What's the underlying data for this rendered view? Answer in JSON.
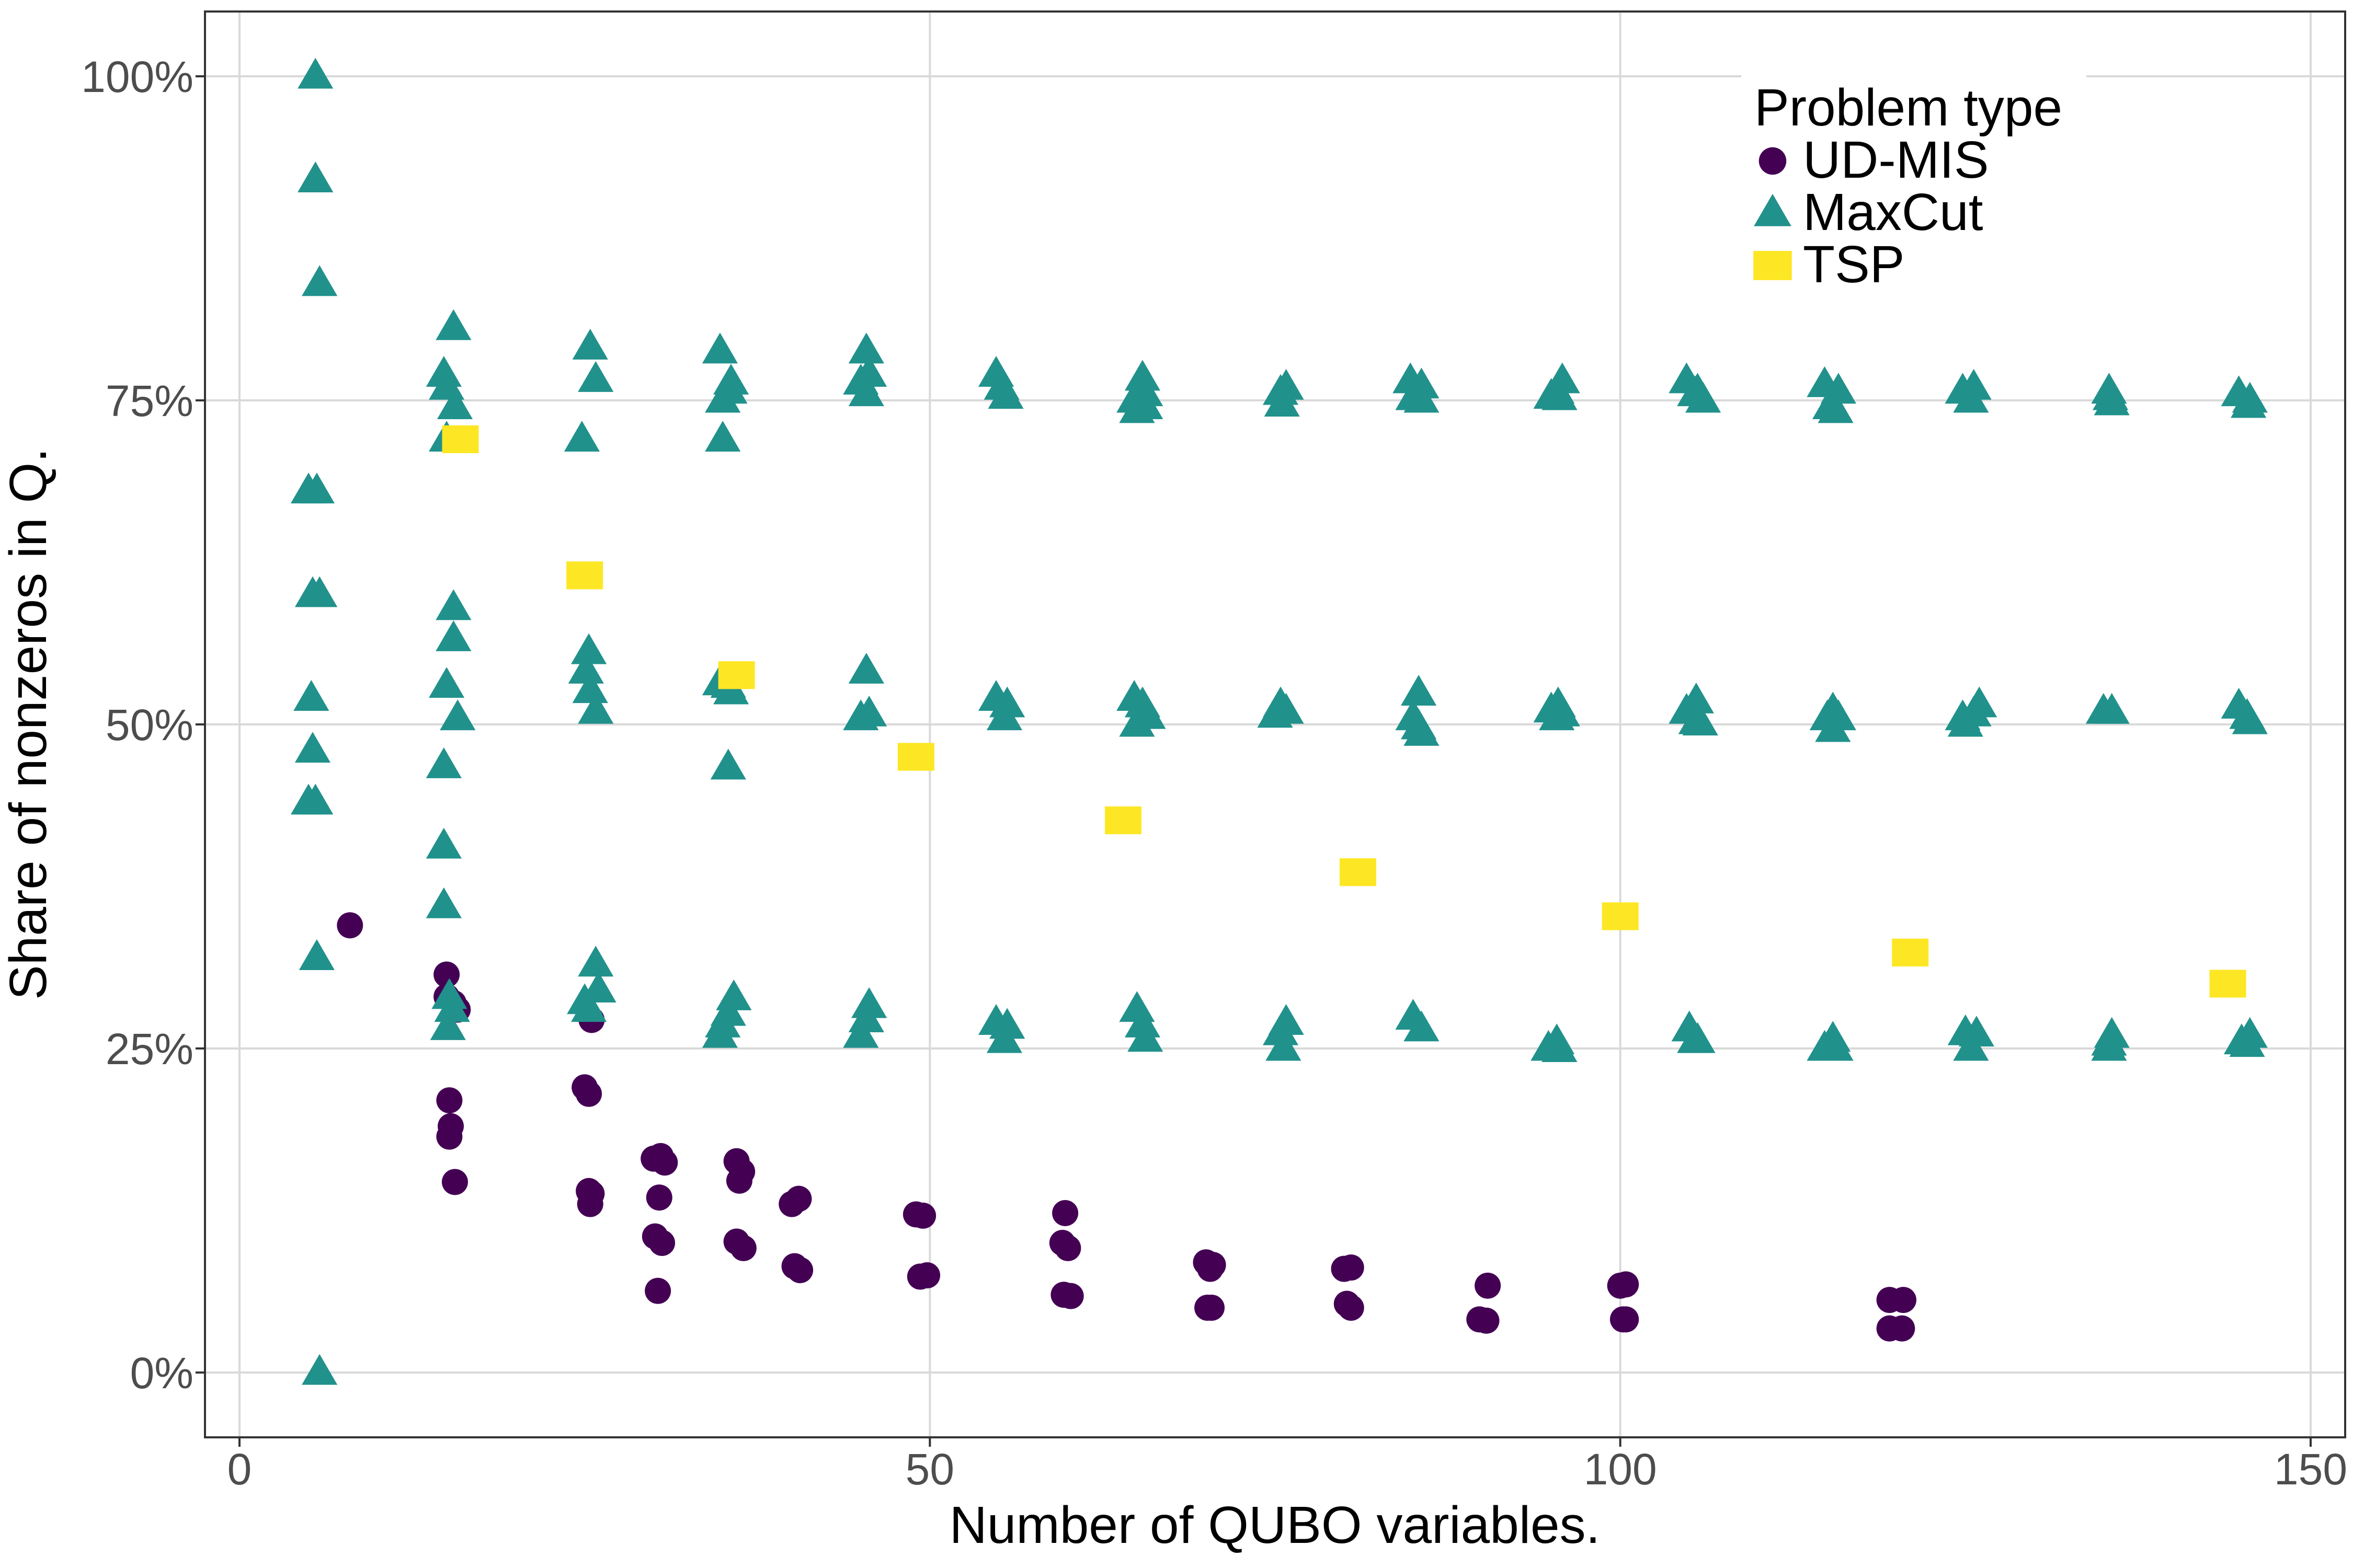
{
  "chart_data": {
    "type": "scatter",
    "xlabel": "Number of QUBO variables.",
    "ylabel": "Share of nonzeros in Q.",
    "xlim": [
      -2.5,
      152.5
    ],
    "ylim": [
      -0.05,
      1.05
    ],
    "x_ticks": [
      0,
      50,
      100,
      150
    ],
    "x_tick_labels": [
      "0",
      "50",
      "100",
      "150"
    ],
    "y_ticks": [
      0,
      0.25,
      0.5,
      0.75,
      1.0
    ],
    "y_tick_labels": [
      "0%",
      "25%",
      "50%",
      "75%",
      "100%"
    ],
    "grid": true,
    "legend": {
      "title": "Problem type",
      "placement": "top-right"
    },
    "series": [
      {
        "name": "UD-MIS",
        "marker": "circle",
        "color": "#440154",
        "points": [
          [
            8,
            0.345
          ],
          [
            15,
            0.307
          ],
          [
            15,
            0.29
          ],
          [
            15.5,
            0.285
          ],
          [
            15.8,
            0.28
          ],
          [
            15.2,
            0.21
          ],
          [
            15.3,
            0.19
          ],
          [
            15.2,
            0.182
          ],
          [
            15.6,
            0.147
          ],
          [
            25,
            0.22
          ],
          [
            25.3,
            0.215
          ],
          [
            25.5,
            0.272
          ],
          [
            25.3,
            0.14
          ],
          [
            25.5,
            0.138
          ],
          [
            25.4,
            0.13
          ],
          [
            30,
            0.165
          ],
          [
            30.5,
            0.167
          ],
          [
            30.8,
            0.162
          ],
          [
            30.4,
            0.135
          ],
          [
            30.1,
            0.105
          ],
          [
            30.6,
            0.1
          ],
          [
            30.3,
            0.063
          ],
          [
            36,
            0.163
          ],
          [
            36.4,
            0.155
          ],
          [
            36.2,
            0.148
          ],
          [
            36,
            0.101
          ],
          [
            36.5,
            0.096
          ],
          [
            40,
            0.13
          ],
          [
            40.5,
            0.134
          ],
          [
            40.2,
            0.082
          ],
          [
            40.6,
            0.079
          ],
          [
            49,
            0.122
          ],
          [
            49.5,
            0.121
          ],
          [
            49.3,
            0.074
          ],
          [
            49.8,
            0.075
          ],
          [
            59.8,
            0.123
          ],
          [
            59.6,
            0.1
          ],
          [
            60,
            0.096
          ],
          [
            59.7,
            0.06
          ],
          [
            60.2,
            0.059
          ],
          [
            70,
            0.085
          ],
          [
            70.5,
            0.083
          ],
          [
            70.3,
            0.08
          ],
          [
            70.1,
            0.05
          ],
          [
            70.4,
            0.05
          ],
          [
            80,
            0.08
          ],
          [
            80.5,
            0.081
          ],
          [
            80.2,
            0.053
          ],
          [
            80.5,
            0.05
          ],
          [
            89.8,
            0.041
          ],
          [
            90.4,
            0.067
          ],
          [
            90.3,
            0.04
          ],
          [
            100,
            0.067
          ],
          [
            100.4,
            0.068
          ],
          [
            100.2,
            0.041
          ],
          [
            100.4,
            0.041
          ],
          [
            119.5,
            0.056
          ],
          [
            120.5,
            0.056
          ],
          [
            119.5,
            0.034
          ],
          [
            120.4,
            0.034
          ]
        ]
      },
      {
        "name": "MaxCut",
        "marker": "triangle",
        "color": "#21918c",
        "points": [
          [
            5.5,
            1.0
          ],
          [
            5.5,
            0.92
          ],
          [
            5.8,
            0.84
          ],
          [
            5,
            0.68
          ],
          [
            5.6,
            0.68
          ],
          [
            5.3,
            0.6
          ],
          [
            5.8,
            0.6
          ],
          [
            5.2,
            0.52
          ],
          [
            5.3,
            0.48
          ],
          [
            5,
            0.44
          ],
          [
            5.5,
            0.44
          ],
          [
            5.6,
            0.32
          ],
          [
            5.8,
            0.0
          ],
          [
            15.5,
            0.806
          ],
          [
            14.8,
            0.77
          ],
          [
            15,
            0.76
          ],
          [
            15.6,
            0.745
          ],
          [
            15,
            0.72
          ],
          [
            15.5,
            0.59
          ],
          [
            15.5,
            0.566
          ],
          [
            15,
            0.53
          ],
          [
            15.8,
            0.505
          ],
          [
            14.8,
            0.468
          ],
          [
            14.8,
            0.406
          ],
          [
            14.8,
            0.36
          ],
          [
            15.2,
            0.29
          ],
          [
            15.4,
            0.28
          ],
          [
            15.1,
            0.266
          ],
          [
            25.4,
            0.791
          ],
          [
            25.8,
            0.766
          ],
          [
            24.8,
            0.72
          ],
          [
            25.3,
            0.556
          ],
          [
            25.1,
            0.541
          ],
          [
            25.4,
            0.526
          ],
          [
            25.8,
            0.51
          ],
          [
            25.8,
            0.315
          ],
          [
            26,
            0.295
          ],
          [
            25,
            0.286
          ],
          [
            25.3,
            0.28
          ],
          [
            34.8,
            0.788
          ],
          [
            35.6,
            0.764
          ],
          [
            35.5,
            0.757
          ],
          [
            35,
            0.75
          ],
          [
            35,
            0.72
          ],
          [
            34.8,
            0.532
          ],
          [
            35.4,
            0.53
          ],
          [
            35.6,
            0.525
          ],
          [
            35.4,
            0.467
          ],
          [
            35.8,
            0.289
          ],
          [
            35.4,
            0.277
          ],
          [
            35,
            0.268
          ],
          [
            34.8,
            0.26
          ],
          [
            45.4,
            0.788
          ],
          [
            45.6,
            0.77
          ],
          [
            45,
            0.764
          ],
          [
            45.4,
            0.755
          ],
          [
            45.4,
            0.541
          ],
          [
            45.6,
            0.508
          ],
          [
            45,
            0.505
          ],
          [
            45.6,
            0.283
          ],
          [
            45.4,
            0.272
          ],
          [
            45,
            0.26
          ],
          [
            54.8,
            0.77
          ],
          [
            55.2,
            0.76
          ],
          [
            55.5,
            0.753
          ],
          [
            54.8,
            0.52
          ],
          [
            55.6,
            0.515
          ],
          [
            55.4,
            0.505
          ],
          [
            54.8,
            0.27
          ],
          [
            55.6,
            0.267
          ],
          [
            55.4,
            0.256
          ],
          [
            65.4,
            0.767
          ],
          [
            65.6,
            0.755
          ],
          [
            64.8,
            0.75
          ],
          [
            65,
            0.742
          ],
          [
            65.6,
            0.745
          ],
          [
            64.8,
            0.52
          ],
          [
            65.4,
            0.515
          ],
          [
            65.8,
            0.506
          ],
          [
            65,
            0.5
          ],
          [
            65,
            0.28
          ],
          [
            65.4,
            0.268
          ],
          [
            65.6,
            0.257
          ],
          [
            75.8,
            0.76
          ],
          [
            75.4,
            0.756
          ],
          [
            75.5,
            0.747
          ],
          [
            75.4,
            0.515
          ],
          [
            75.8,
            0.51
          ],
          [
            75,
            0.507
          ],
          [
            75.8,
            0.27
          ],
          [
            75.4,
            0.262
          ],
          [
            75.6,
            0.25
          ],
          [
            84.8,
            0.765
          ],
          [
            85.6,
            0.761
          ],
          [
            85,
            0.752
          ],
          [
            85.6,
            0.75
          ],
          [
            85.4,
            0.524
          ],
          [
            85,
            0.505
          ],
          [
            85.4,
            0.498
          ],
          [
            85.6,
            0.493
          ],
          [
            85,
            0.274
          ],
          [
            85.6,
            0.265
          ],
          [
            95.8,
            0.765
          ],
          [
            95.4,
            0.757
          ],
          [
            95,
            0.753
          ],
          [
            95.6,
            0.752
          ],
          [
            95.5,
            0.515
          ],
          [
            95,
            0.511
          ],
          [
            95.8,
            0.508
          ],
          [
            95.4,
            0.505
          ],
          [
            95.4,
            0.255
          ],
          [
            94.8,
            0.25
          ],
          [
            95.6,
            0.249
          ],
          [
            104.8,
            0.765
          ],
          [
            105.6,
            0.757
          ],
          [
            105.4,
            0.755
          ],
          [
            106,
            0.75
          ],
          [
            105.5,
            0.518
          ],
          [
            104.8,
            0.51
          ],
          [
            105.5,
            0.502
          ],
          [
            105.8,
            0.501
          ],
          [
            105,
            0.265
          ],
          [
            105.4,
            0.256
          ],
          [
            105.6,
            0.256
          ],
          [
            114.8,
            0.762
          ],
          [
            115.8,
            0.757
          ],
          [
            115.2,
            0.745
          ],
          [
            115.6,
            0.742
          ],
          [
            115.4,
            0.511
          ],
          [
            115,
            0.505
          ],
          [
            115.8,
            0.505
          ],
          [
            115.4,
            0.496
          ],
          [
            115.4,
            0.257
          ],
          [
            114.8,
            0.25
          ],
          [
            115.6,
            0.25
          ],
          [
            124.8,
            0.757
          ],
          [
            125.6,
            0.76
          ],
          [
            125.4,
            0.75
          ],
          [
            126,
            0.515
          ],
          [
            125.6,
            0.508
          ],
          [
            124.8,
            0.505
          ],
          [
            125,
            0.5
          ],
          [
            125,
            0.262
          ],
          [
            125.8,
            0.261
          ],
          [
            125.4,
            0.25
          ],
          [
            135.4,
            0.757
          ],
          [
            135.5,
            0.752
          ],
          [
            135.6,
            0.748
          ],
          [
            135,
            0.51
          ],
          [
            135.6,
            0.51
          ],
          [
            135.4,
            0.254
          ],
          [
            135.6,
            0.26
          ],
          [
            135.4,
            0.25
          ],
          [
            144.8,
            0.755
          ],
          [
            145.6,
            0.75
          ],
          [
            145.5,
            0.746
          ],
          [
            144.8,
            0.514
          ],
          [
            145.4,
            0.506
          ],
          [
            145.6,
            0.502
          ],
          [
            145,
            0.255
          ],
          [
            145.6,
            0.26
          ],
          [
            145.4,
            0.253
          ]
        ]
      },
      {
        "name": "TSP",
        "marker": "square",
        "color": "#fde725",
        "points": [
          [
            16,
            0.72
          ],
          [
            25,
            0.615
          ],
          [
            36,
            0.538
          ],
          [
            49,
            0.475
          ],
          [
            64,
            0.426
          ],
          [
            81,
            0.386
          ],
          [
            100,
            0.352
          ],
          [
            121,
            0.324
          ],
          [
            144,
            0.3
          ]
        ]
      }
    ]
  }
}
